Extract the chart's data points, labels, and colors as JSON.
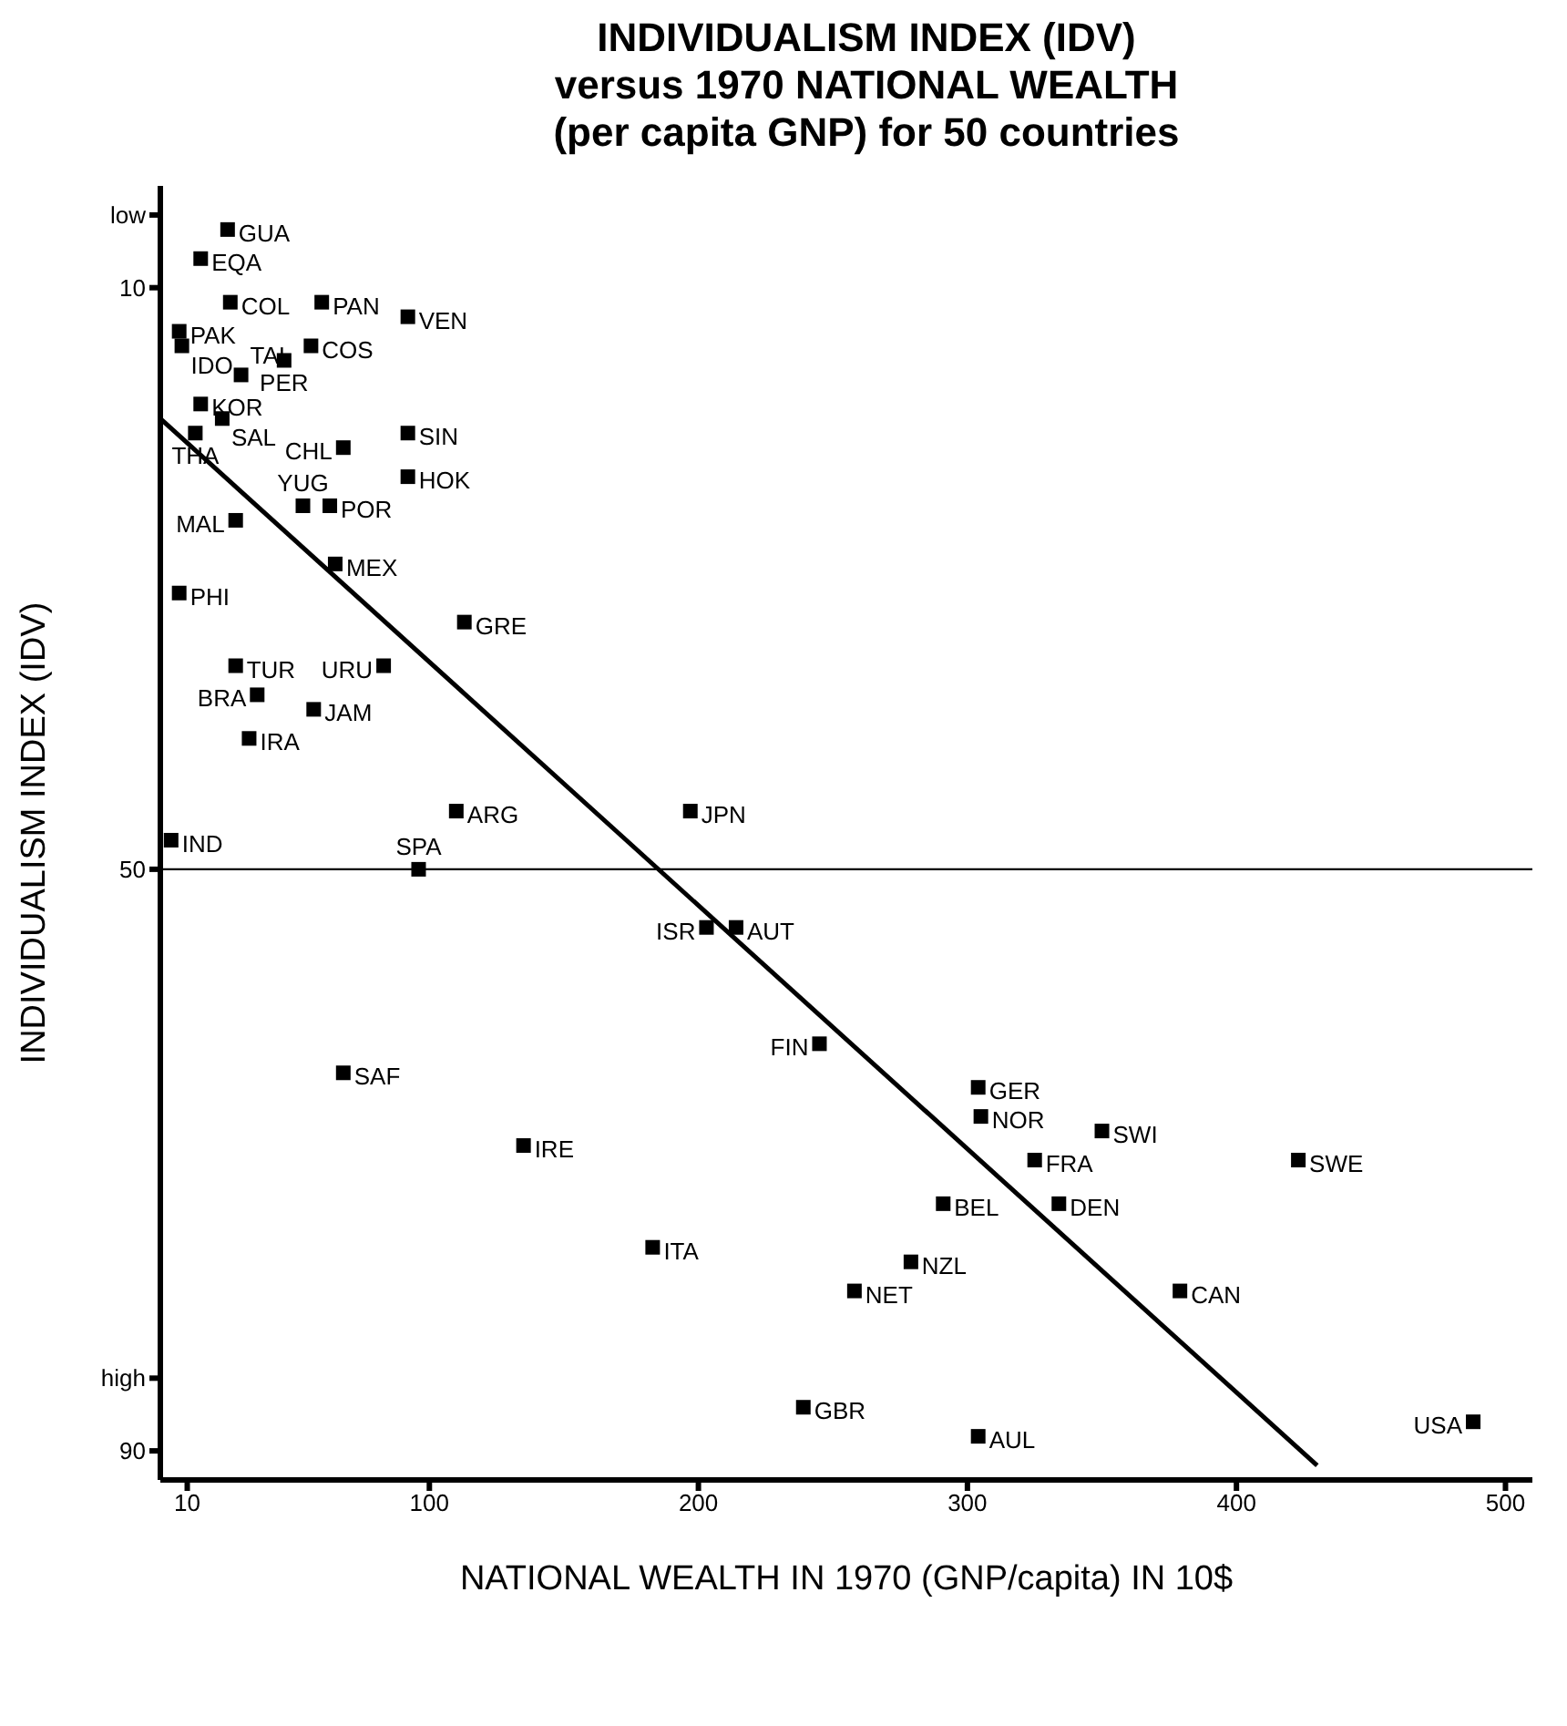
{
  "chart_data": {
    "type": "scatter",
    "title": "INDIVIDUALISM INDEX (IDV)\nversus 1970 NATIONAL WEALTH\n(per capita GNP) for 50 countries",
    "xlabel": "NATIONAL WEALTH IN 1970 (GNP/capita) IN 10$",
    "ylabel": "INDIVIDUALISM INDEX (IDV)",
    "xlim": [
      0,
      510
    ],
    "xticks": [
      10,
      100,
      200,
      300,
      400,
      500
    ],
    "ylim": [
      92,
      3
    ],
    "yticks": [
      {
        "value": 5,
        "label": "low"
      },
      10,
      50,
      {
        "value": 85,
        "label": "high"
      },
      90
    ],
    "marker": "square",
    "ref_lines": [
      {
        "axis": "y",
        "value": 50,
        "color": "#000000"
      }
    ],
    "series": [
      {
        "name": "GUA",
        "color": "#000000",
        "x": [
          25
        ],
        "values": [
          6
        ]
      },
      {
        "name": "EQA",
        "color": "#000000",
        "x": [
          15
        ],
        "values": [
          8
        ]
      },
      {
        "name": "PAN",
        "color": "#000000",
        "x": [
          60
        ],
        "values": [
          11
        ]
      },
      {
        "name": "VEN",
        "color": "#000000",
        "x": [
          92
        ],
        "values": [
          12
        ]
      },
      {
        "name": "PAK",
        "color": "#000000",
        "x": [
          7
        ],
        "values": [
          13
        ]
      },
      {
        "name": "COL",
        "color": "#000000",
        "x": [
          26
        ],
        "values": [
          11
        ]
      },
      {
        "name": "IDO",
        "color": "#000000",
        "x": [
          8
        ],
        "values": [
          14
        ]
      },
      {
        "name": "PER",
        "color": "#000000",
        "x": [
          46
        ],
        "values": [
          15
        ]
      },
      {
        "name": "COS",
        "color": "#000000",
        "x": [
          56
        ],
        "values": [
          14
        ]
      },
      {
        "name": "KOR",
        "color": "#000000",
        "x": [
          15
        ],
        "values": [
          18
        ]
      },
      {
        "name": "TAI",
        "color": "#000000",
        "x": [
          30
        ],
        "values": [
          16
        ]
      },
      {
        "name": "SAL",
        "color": "#000000",
        "x": [
          23
        ],
        "values": [
          19
        ]
      },
      {
        "name": "THA",
        "color": "#000000",
        "x": [
          13
        ],
        "values": [
          20
        ]
      },
      {
        "name": "CHL",
        "color": "#000000",
        "x": [
          68
        ],
        "values": [
          21
        ]
      },
      {
        "name": "SIN",
        "color": "#000000",
        "x": [
          92
        ],
        "values": [
          20
        ]
      },
      {
        "name": "YUG",
        "color": "#000000",
        "x": [
          53
        ],
        "values": [
          25
        ]
      },
      {
        "name": "HOK",
        "color": "#000000",
        "x": [
          92
        ],
        "values": [
          23
        ]
      },
      {
        "name": "MAL",
        "color": "#000000",
        "x": [
          28
        ],
        "values": [
          26
        ]
      },
      {
        "name": "POR",
        "color": "#000000",
        "x": [
          63
        ],
        "values": [
          25
        ]
      },
      {
        "name": "MEX",
        "color": "#000000",
        "x": [
          65
        ],
        "values": [
          29
        ]
      },
      {
        "name": "PHI",
        "color": "#000000",
        "x": [
          7
        ],
        "values": [
          31
        ]
      },
      {
        "name": "GRE",
        "color": "#000000",
        "x": [
          113
        ],
        "values": [
          33
        ]
      },
      {
        "name": "TUR",
        "color": "#000000",
        "x": [
          28
        ],
        "values": [
          36
        ]
      },
      {
        "name": "BRA",
        "color": "#000000",
        "x": [
          36
        ],
        "values": [
          38
        ]
      },
      {
        "name": "URU",
        "color": "#000000",
        "x": [
          83
        ],
        "values": [
          36
        ]
      },
      {
        "name": "JAM",
        "color": "#000000",
        "x": [
          57
        ],
        "values": [
          39
        ]
      },
      {
        "name": "IRA",
        "color": "#000000",
        "x": [
          33
        ],
        "values": [
          41
        ]
      },
      {
        "name": "ARG",
        "color": "#000000",
        "x": [
          110
        ],
        "values": [
          46
        ]
      },
      {
        "name": "JPN",
        "color": "#000000",
        "x": [
          197
        ],
        "values": [
          46
        ]
      },
      {
        "name": "IND",
        "color": "#000000",
        "x": [
          4
        ],
        "values": [
          48
        ]
      },
      {
        "name": "SPA",
        "color": "#000000",
        "x": [
          96
        ],
        "values": [
          50
        ]
      },
      {
        "name": "ISR",
        "color": "#000000",
        "x": [
          203
        ],
        "values": [
          54
        ]
      },
      {
        "name": "AUT",
        "color": "#000000",
        "x": [
          214
        ],
        "values": [
          54
        ]
      },
      {
        "name": "FIN",
        "color": "#000000",
        "x": [
          245
        ],
        "values": [
          62
        ]
      },
      {
        "name": "SAF",
        "color": "#000000",
        "x": [
          68
        ],
        "values": [
          64
        ]
      },
      {
        "name": "GER",
        "color": "#000000",
        "x": [
          304
        ],
        "values": [
          65
        ]
      },
      {
        "name": "NOR",
        "color": "#000000",
        "x": [
          305
        ],
        "values": [
          67
        ]
      },
      {
        "name": "SWI",
        "color": "#000000",
        "x": [
          350
        ],
        "values": [
          68
        ]
      },
      {
        "name": "IRE",
        "color": "#000000",
        "x": [
          135
        ],
        "values": [
          69
        ]
      },
      {
        "name": "FRA",
        "color": "#000000",
        "x": [
          325
        ],
        "values": [
          70
        ]
      },
      {
        "name": "SWE",
        "color": "#000000",
        "x": [
          423
        ],
        "values": [
          70
        ]
      },
      {
        "name": "BEL",
        "color": "#000000",
        "x": [
          291
        ],
        "values": [
          73
        ]
      },
      {
        "name": "DEN",
        "color": "#000000",
        "x": [
          334
        ],
        "values": [
          73
        ]
      },
      {
        "name": "ITA",
        "color": "#000000",
        "x": [
          183
        ],
        "values": [
          76
        ]
      },
      {
        "name": "NZL",
        "color": "#000000",
        "x": [
          279
        ],
        "values": [
          77
        ]
      },
      {
        "name": "NET",
        "color": "#000000",
        "x": [
          258
        ],
        "values": [
          79
        ]
      },
      {
        "name": "CAN",
        "color": "#000000",
        "x": [
          379
        ],
        "values": [
          79
        ]
      },
      {
        "name": "GBR",
        "color": "#000000",
        "x": [
          239
        ],
        "values": [
          87
        ]
      },
      {
        "name": "AUL",
        "color": "#000000",
        "x": [
          304
        ],
        "values": [
          89
        ]
      },
      {
        "name": "USA",
        "color": "#000000",
        "x": [
          488
        ],
        "values": [
          88
        ]
      },
      {
        "type": "line",
        "color": "#000000",
        "marker": "none",
        "x": [
          0,
          430
        ],
        "values": [
          19,
          91
        ]
      }
    ]
  }
}
